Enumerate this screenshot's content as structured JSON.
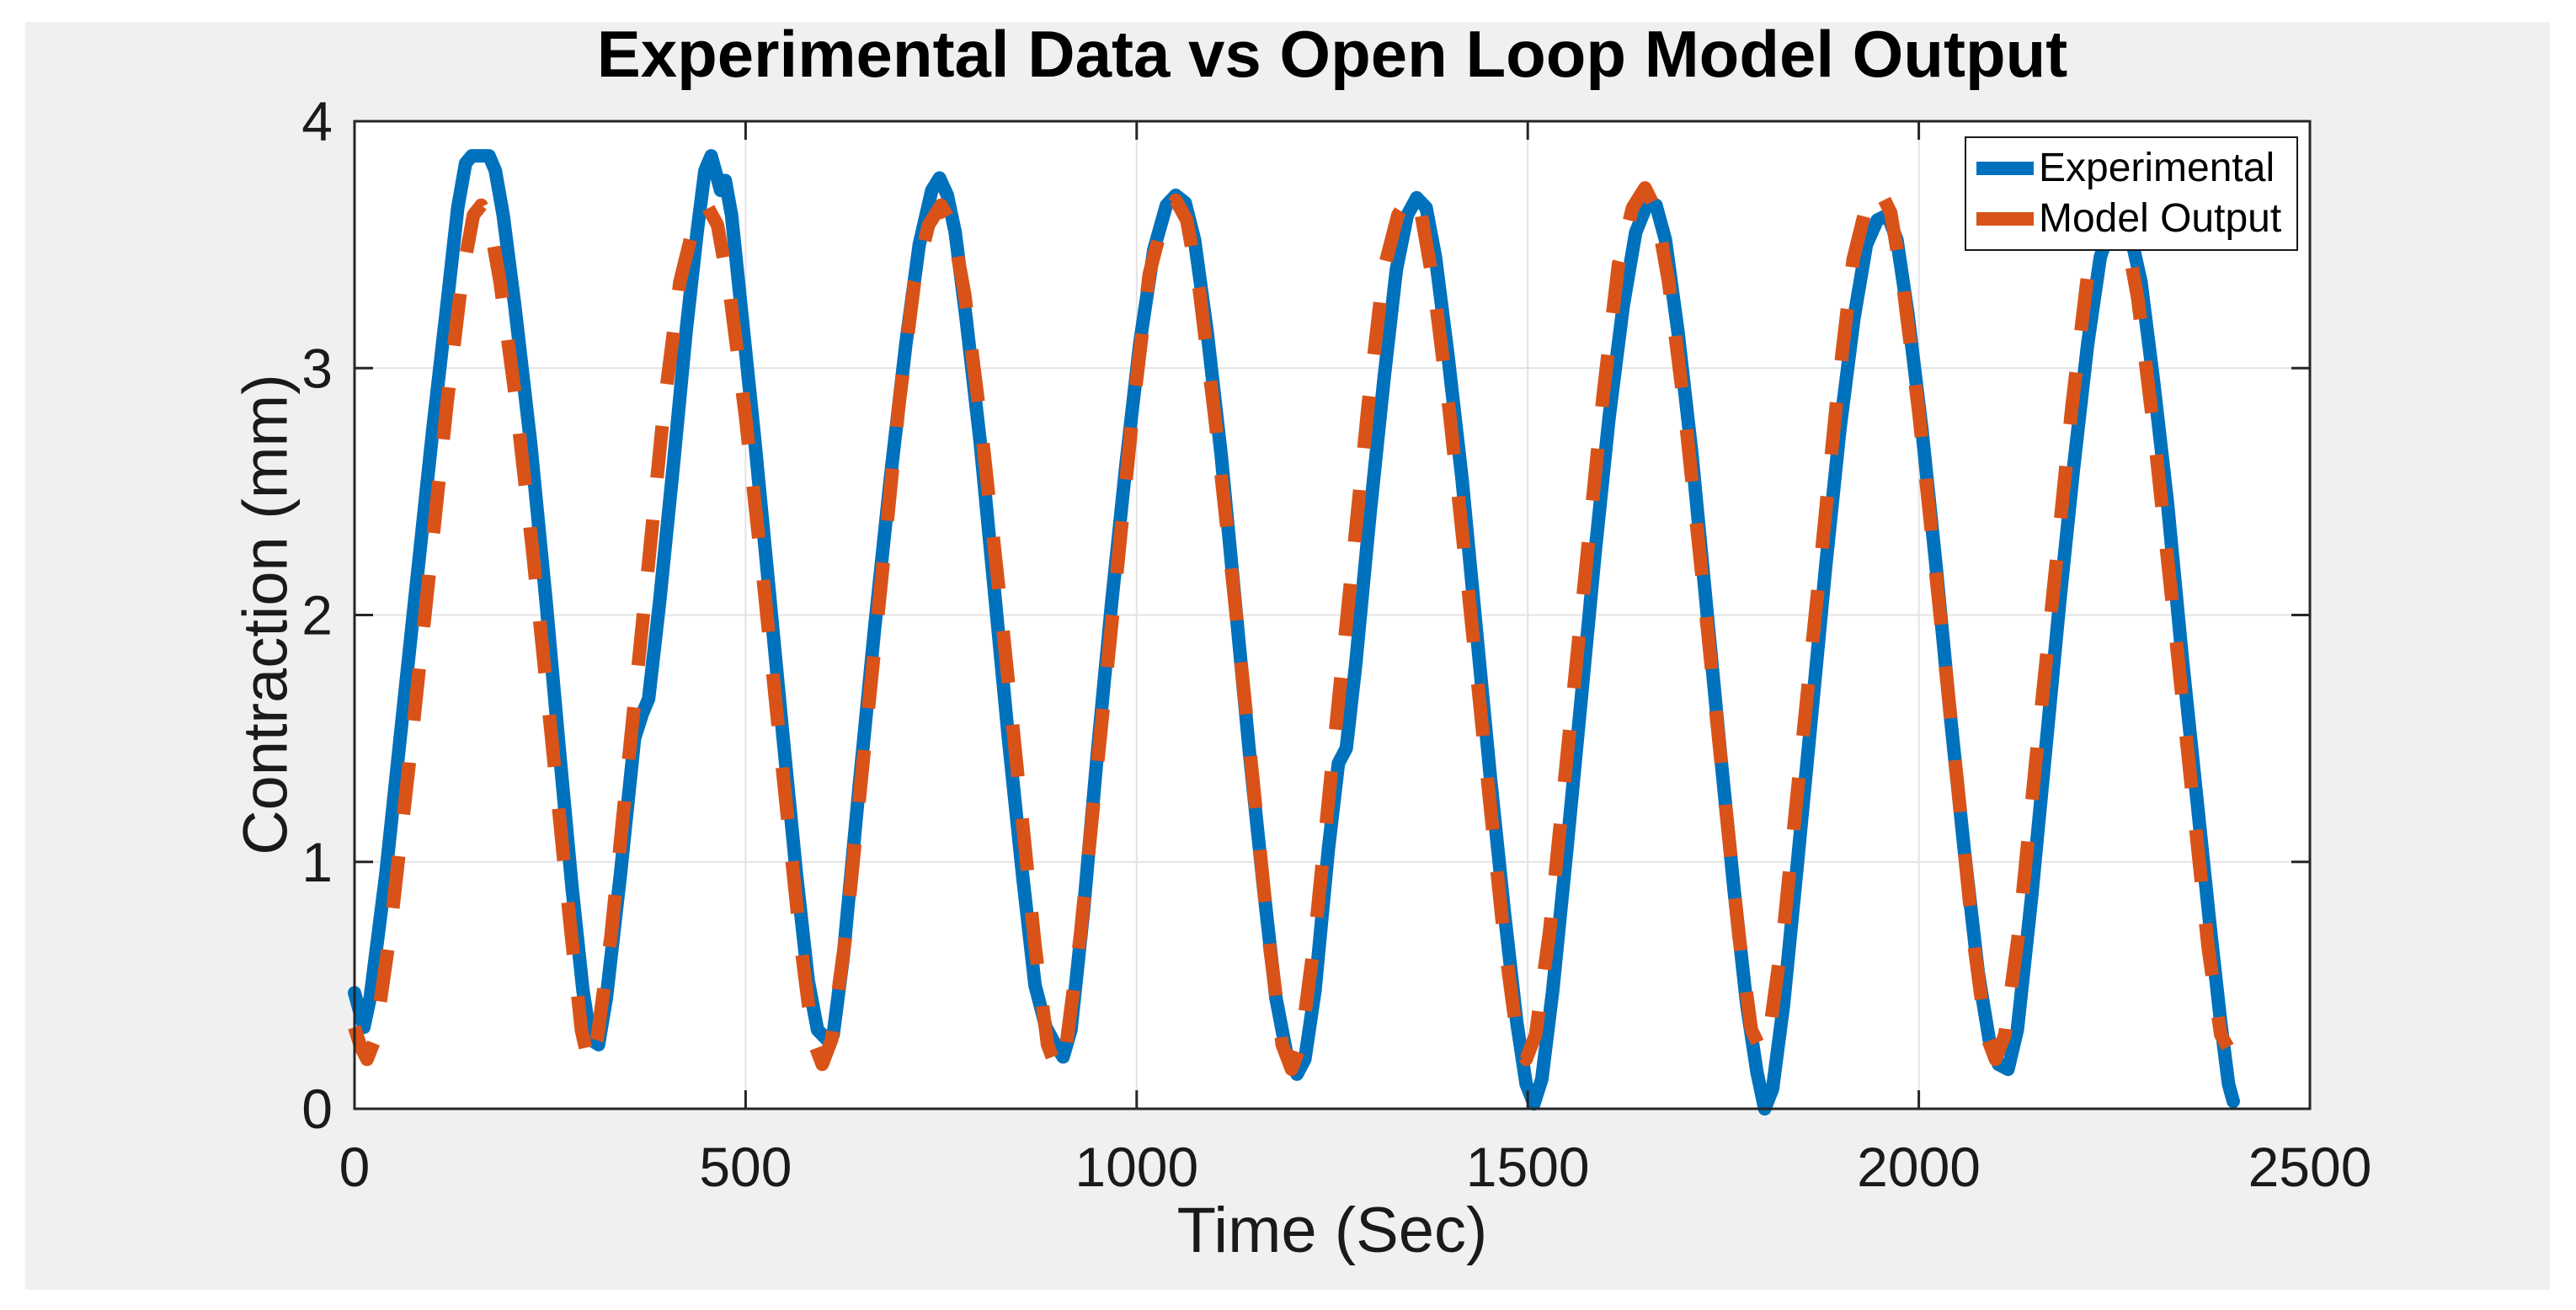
{
  "figure": {
    "background_color": "#f0f0f0",
    "plot_background_color": "#ffffff",
    "axis_color": "#262626",
    "grid_color": "#e3e3e3",
    "text_color": "#1a1a1a"
  },
  "legend": {
    "position": "northeast",
    "entries": [
      {
        "label": "Experimental",
        "color": "#0072BD",
        "style": "solid"
      },
      {
        "label": "Model Output",
        "color": "#D95319",
        "style": "dashed"
      }
    ]
  },
  "chart_data": {
    "type": "line",
    "title": "Experimental Data vs Open Loop Model Output",
    "xlabel": "Time (Sec)",
    "ylabel": "Contraction (mm)",
    "xlim": [
      0,
      2500
    ],
    "ylim": [
      0,
      4
    ],
    "xticks": [
      0,
      500,
      1000,
      1500,
      2000,
      2500
    ],
    "yticks": [
      0,
      1,
      2,
      3,
      4
    ],
    "grid": true,
    "series": [
      {
        "name": "Experimental",
        "color": "#0072BD",
        "line_style": "solid",
        "line_width": 16,
        "points": [
          [
            0,
            0.47
          ],
          [
            6,
            0.4
          ],
          [
            12,
            0.33
          ],
          [
            20,
            0.45
          ],
          [
            40,
            0.95
          ],
          [
            60,
            1.55
          ],
          [
            80,
            2.15
          ],
          [
            100,
            2.75
          ],
          [
            118,
            3.25
          ],
          [
            132,
            3.65
          ],
          [
            142,
            3.83
          ],
          [
            150,
            3.86
          ],
          [
            172,
            3.86
          ],
          [
            180,
            3.8
          ],
          [
            190,
            3.62
          ],
          [
            205,
            3.25
          ],
          [
            225,
            2.7
          ],
          [
            245,
            2.05
          ],
          [
            262,
            1.45
          ],
          [
            278,
            0.9
          ],
          [
            292,
            0.48
          ],
          [
            302,
            0.28
          ],
          [
            312,
            0.26
          ],
          [
            322,
            0.45
          ],
          [
            340,
            0.95
          ],
          [
            358,
            1.5
          ],
          [
            368,
            1.6
          ],
          [
            376,
            1.66
          ],
          [
            390,
            2.05
          ],
          [
            408,
            2.62
          ],
          [
            424,
            3.15
          ],
          [
            438,
            3.55
          ],
          [
            448,
            3.8
          ],
          [
            456,
            3.86
          ],
          [
            463,
            3.78
          ],
          [
            468,
            3.72
          ],
          [
            474,
            3.76
          ],
          [
            482,
            3.62
          ],
          [
            495,
            3.22
          ],
          [
            512,
            2.7
          ],
          [
            530,
            2.1
          ],
          [
            548,
            1.5
          ],
          [
            565,
            0.95
          ],
          [
            580,
            0.52
          ],
          [
            592,
            0.32
          ],
          [
            604,
            0.28
          ],
          [
            612,
            0.3
          ],
          [
            625,
            0.62
          ],
          [
            645,
            1.3
          ],
          [
            665,
            1.95
          ],
          [
            685,
            2.55
          ],
          [
            705,
            3.1
          ],
          [
            722,
            3.5
          ],
          [
            738,
            3.72
          ],
          [
            748,
            3.77
          ],
          [
            758,
            3.7
          ],
          [
            768,
            3.55
          ],
          [
            782,
            3.2
          ],
          [
            800,
            2.7
          ],
          [
            818,
            2.1
          ],
          [
            836,
            1.5
          ],
          [
            854,
            0.95
          ],
          [
            870,
            0.5
          ],
          [
            884,
            0.33
          ],
          [
            896,
            0.26
          ],
          [
            906,
            0.21
          ],
          [
            916,
            0.32
          ],
          [
            932,
            0.8
          ],
          [
            950,
            1.45
          ],
          [
            968,
            2.05
          ],
          [
            986,
            2.6
          ],
          [
            1004,
            3.1
          ],
          [
            1022,
            3.48
          ],
          [
            1038,
            3.66
          ],
          [
            1050,
            3.7
          ],
          [
            1062,
            3.67
          ],
          [
            1074,
            3.52
          ],
          [
            1090,
            3.15
          ],
          [
            1108,
            2.65
          ],
          [
            1126,
            2.05
          ],
          [
            1144,
            1.45
          ],
          [
            1162,
            0.9
          ],
          [
            1178,
            0.45
          ],
          [
            1192,
            0.22
          ],
          [
            1205,
            0.14
          ],
          [
            1215,
            0.2
          ],
          [
            1228,
            0.48
          ],
          [
            1245,
            1.05
          ],
          [
            1258,
            1.4
          ],
          [
            1268,
            1.46
          ],
          [
            1280,
            1.8
          ],
          [
            1298,
            2.4
          ],
          [
            1316,
            2.95
          ],
          [
            1332,
            3.4
          ],
          [
            1346,
            3.62
          ],
          [
            1358,
            3.69
          ],
          [
            1370,
            3.65
          ],
          [
            1382,
            3.45
          ],
          [
            1398,
            3.05
          ],
          [
            1416,
            2.55
          ],
          [
            1434,
            1.95
          ],
          [
            1452,
            1.35
          ],
          [
            1470,
            0.8
          ],
          [
            1486,
            0.35
          ],
          [
            1498,
            0.1
          ],
          [
            1508,
            0.02
          ],
          [
            1518,
            0.12
          ],
          [
            1532,
            0.48
          ],
          [
            1550,
            1.05
          ],
          [
            1568,
            1.65
          ],
          [
            1586,
            2.25
          ],
          [
            1604,
            2.8
          ],
          [
            1622,
            3.25
          ],
          [
            1638,
            3.55
          ],
          [
            1652,
            3.66
          ],
          [
            1664,
            3.66
          ],
          [
            1676,
            3.52
          ],
          [
            1692,
            3.15
          ],
          [
            1710,
            2.65
          ],
          [
            1728,
            2.05
          ],
          [
            1746,
            1.45
          ],
          [
            1764,
            0.88
          ],
          [
            1780,
            0.42
          ],
          [
            1793,
            0.15
          ],
          [
            1803,
            0.0
          ],
          [
            1813,
            0.08
          ],
          [
            1827,
            0.42
          ],
          [
            1845,
            1.0
          ],
          [
            1863,
            1.6
          ],
          [
            1881,
            2.2
          ],
          [
            1899,
            2.75
          ],
          [
            1917,
            3.2
          ],
          [
            1933,
            3.5
          ],
          [
            1947,
            3.6
          ],
          [
            1960,
            3.62
          ],
          [
            1972,
            3.52
          ],
          [
            1986,
            3.22
          ],
          [
            2004,
            2.75
          ],
          [
            2022,
            2.2
          ],
          [
            2040,
            1.6
          ],
          [
            2058,
            1.05
          ],
          [
            2076,
            0.55
          ],
          [
            2090,
            0.28
          ],
          [
            2102,
            0.18
          ],
          [
            2114,
            0.16
          ],
          [
            2126,
            0.32
          ],
          [
            2144,
            0.85
          ],
          [
            2162,
            1.45
          ],
          [
            2180,
            2.05
          ],
          [
            2198,
            2.6
          ],
          [
            2216,
            3.1
          ],
          [
            2232,
            3.45
          ],
          [
            2246,
            3.58
          ],
          [
            2258,
            3.6
          ],
          [
            2270,
            3.55
          ],
          [
            2284,
            3.35
          ],
          [
            2300,
            2.95
          ],
          [
            2318,
            2.45
          ],
          [
            2336,
            1.85
          ],
          [
            2354,
            1.3
          ],
          [
            2372,
            0.75
          ],
          [
            2386,
            0.35
          ],
          [
            2396,
            0.1
          ],
          [
            2402,
            0.03
          ]
        ]
      },
      {
        "name": "Model Output",
        "color": "#D95319",
        "line_style": "dashed",
        "line_width": 16,
        "points": [
          [
            0,
            0.33
          ],
          [
            8,
            0.25
          ],
          [
            16,
            0.2
          ],
          [
            26,
            0.28
          ],
          [
            45,
            0.7
          ],
          [
            70,
            1.4
          ],
          [
            95,
            2.15
          ],
          [
            118,
            2.85
          ],
          [
            138,
            3.38
          ],
          [
            152,
            3.62
          ],
          [
            162,
            3.66
          ],
          [
            172,
            3.6
          ],
          [
            186,
            3.35
          ],
          [
            205,
            2.9
          ],
          [
            228,
            2.25
          ],
          [
            252,
            1.5
          ],
          [
            274,
            0.8
          ],
          [
            290,
            0.32
          ],
          [
            300,
            0.18
          ],
          [
            310,
            0.28
          ],
          [
            328,
            0.7
          ],
          [
            350,
            1.4
          ],
          [
            374,
            2.15
          ],
          [
            396,
            2.85
          ],
          [
            416,
            3.35
          ],
          [
            434,
            3.58
          ],
          [
            450,
            3.66
          ],
          [
            464,
            3.58
          ],
          [
            480,
            3.3
          ],
          [
            500,
            2.8
          ],
          [
            524,
            2.1
          ],
          [
            548,
            1.35
          ],
          [
            570,
            0.68
          ],
          [
            586,
            0.28
          ],
          [
            598,
            0.18
          ],
          [
            610,
            0.28
          ],
          [
            628,
            0.7
          ],
          [
            650,
            1.4
          ],
          [
            674,
            2.15
          ],
          [
            696,
            2.85
          ],
          [
            716,
            3.35
          ],
          [
            734,
            3.58
          ],
          [
            750,
            3.66
          ],
          [
            764,
            3.58
          ],
          [
            780,
            3.3
          ],
          [
            800,
            2.8
          ],
          [
            824,
            2.1
          ],
          [
            848,
            1.35
          ],
          [
            870,
            0.66
          ],
          [
            886,
            0.26
          ],
          [
            898,
            0.16
          ],
          [
            910,
            0.26
          ],
          [
            928,
            0.7
          ],
          [
            950,
            1.4
          ],
          [
            974,
            2.15
          ],
          [
            996,
            2.85
          ],
          [
            1016,
            3.38
          ],
          [
            1034,
            3.6
          ],
          [
            1050,
            3.68
          ],
          [
            1064,
            3.6
          ],
          [
            1080,
            3.32
          ],
          [
            1100,
            2.8
          ],
          [
            1124,
            2.1
          ],
          [
            1148,
            1.35
          ],
          [
            1170,
            0.66
          ],
          [
            1186,
            0.26
          ],
          [
            1198,
            0.16
          ],
          [
            1210,
            0.26
          ],
          [
            1228,
            0.7
          ],
          [
            1250,
            1.4
          ],
          [
            1274,
            2.15
          ],
          [
            1296,
            2.85
          ],
          [
            1316,
            3.4
          ],
          [
            1334,
            3.62
          ],
          [
            1350,
            3.7
          ],
          [
            1364,
            3.62
          ],
          [
            1380,
            3.33
          ],
          [
            1400,
            2.82
          ],
          [
            1424,
            2.1
          ],
          [
            1448,
            1.35
          ],
          [
            1470,
            0.68
          ],
          [
            1486,
            0.3
          ],
          [
            1498,
            0.2
          ],
          [
            1510,
            0.3
          ],
          [
            1528,
            0.72
          ],
          [
            1550,
            1.42
          ],
          [
            1574,
            2.18
          ],
          [
            1596,
            2.88
          ],
          [
            1616,
            3.42
          ],
          [
            1634,
            3.65
          ],
          [
            1650,
            3.73
          ],
          [
            1664,
            3.64
          ],
          [
            1680,
            3.35
          ],
          [
            1700,
            2.84
          ],
          [
            1724,
            2.12
          ],
          [
            1748,
            1.38
          ],
          [
            1770,
            0.7
          ],
          [
            1786,
            0.32
          ],
          [
            1798,
            0.24
          ],
          [
            1810,
            0.33
          ],
          [
            1828,
            0.75
          ],
          [
            1850,
            1.45
          ],
          [
            1874,
            2.2
          ],
          [
            1896,
            2.9
          ],
          [
            1916,
            3.44
          ],
          [
            1934,
            3.67
          ],
          [
            1950,
            3.72
          ],
          [
            1964,
            3.63
          ],
          [
            1980,
            3.33
          ],
          [
            2000,
            2.82
          ],
          [
            2024,
            2.1
          ],
          [
            2048,
            1.36
          ],
          [
            2070,
            0.68
          ],
          [
            2086,
            0.3
          ],
          [
            2098,
            0.2
          ],
          [
            2110,
            0.3
          ],
          [
            2128,
            0.72
          ],
          [
            2150,
            1.42
          ],
          [
            2174,
            2.16
          ],
          [
            2196,
            2.85
          ],
          [
            2216,
            3.38
          ],
          [
            2234,
            3.58
          ],
          [
            2250,
            3.64
          ],
          [
            2264,
            3.56
          ],
          [
            2280,
            3.28
          ],
          [
            2300,
            2.76
          ],
          [
            2324,
            2.05
          ],
          [
            2348,
            1.32
          ],
          [
            2370,
            0.65
          ],
          [
            2386,
            0.3
          ],
          [
            2395,
            0.25
          ]
        ]
      }
    ]
  }
}
